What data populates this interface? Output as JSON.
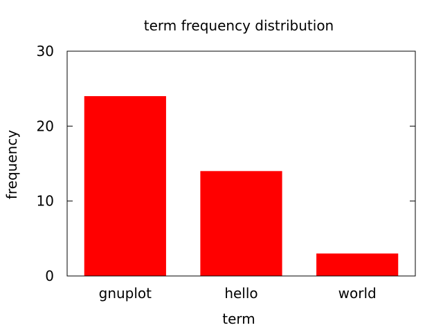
{
  "chart_data": {
    "type": "bar",
    "title": "term frequency distribution",
    "xlabel": "term",
    "ylabel": "frequency",
    "categories": [
      "gnuplot",
      "hello",
      "world"
    ],
    "values": [
      24,
      14,
      3
    ],
    "ylim": [
      0,
      30
    ],
    "yticks": [
      "0",
      "10",
      "20",
      "30"
    ],
    "grid": false,
    "legend": "none",
    "bar_color": "#ff0000"
  }
}
